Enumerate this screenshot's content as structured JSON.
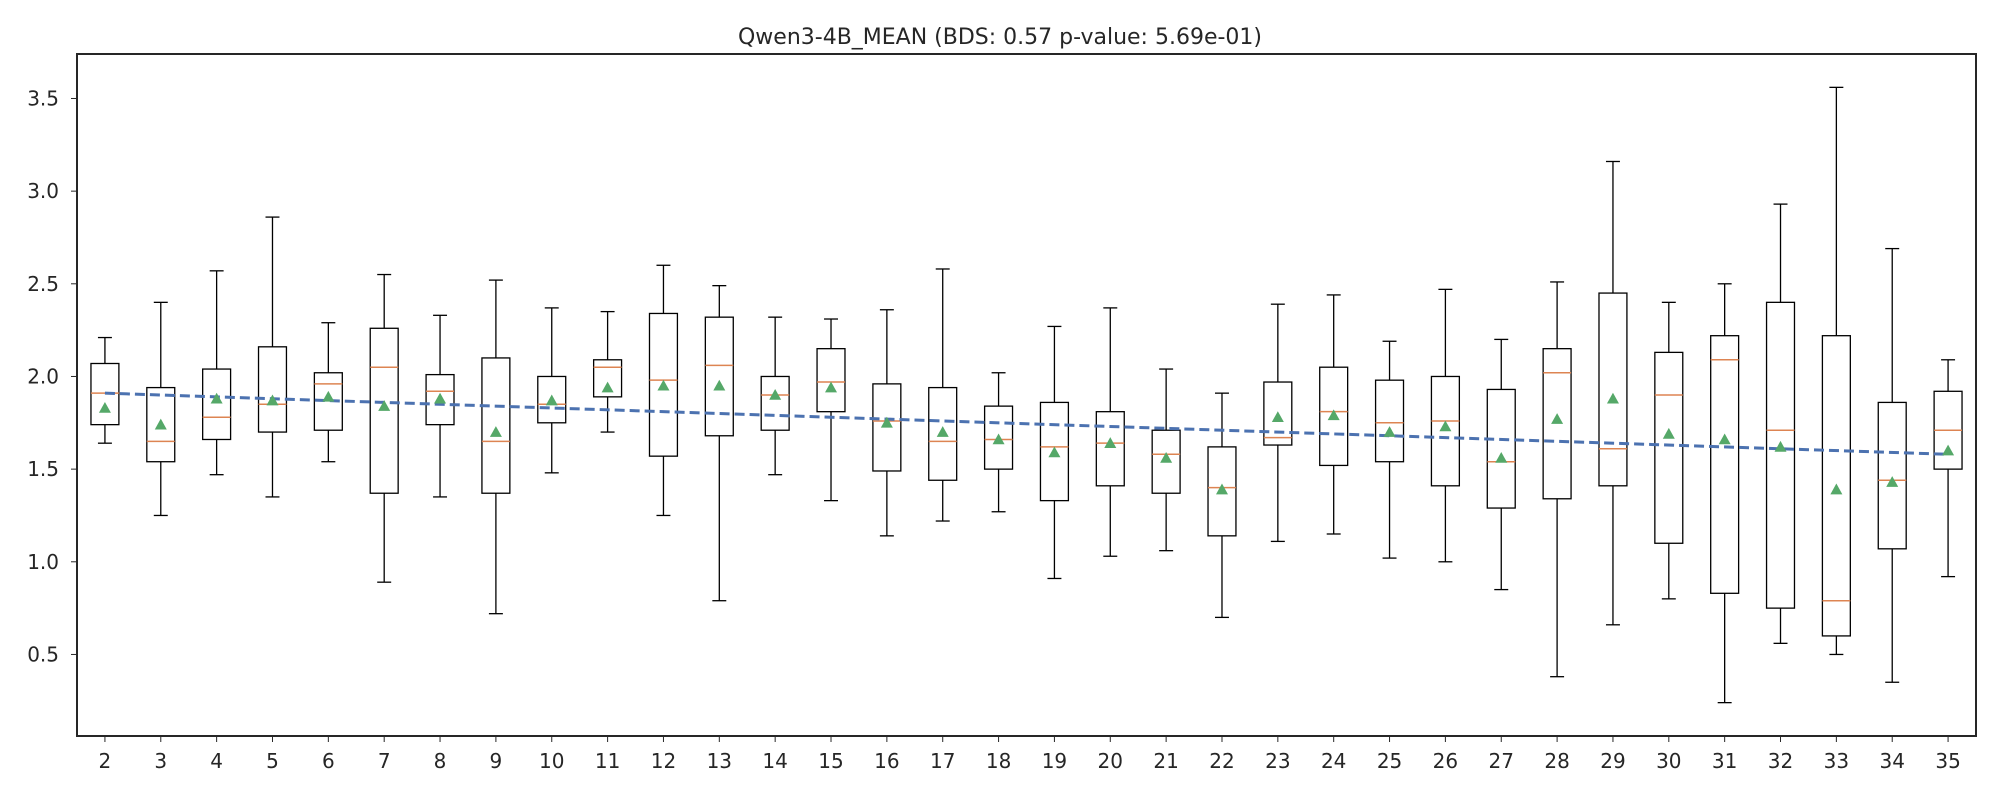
{
  "chart_data": {
    "type": "box",
    "title": "Qwen3-4B_MEAN (BDS: 0.57 p-value: 5.69e-01)",
    "xlabel": "",
    "ylabel": "",
    "ylim": [
      0.06,
      3.74
    ],
    "yticks": [
      0.5,
      1.0,
      1.5,
      2.0,
      2.5,
      3.0,
      3.5
    ],
    "ytick_labels": [
      "0.5",
      "1.0",
      "1.5",
      "2.0",
      "2.5",
      "3.0",
      "3.5"
    ],
    "grid": false,
    "colors": {
      "box": "#000000",
      "median": "#dd8452",
      "mean": "#55a868",
      "trend": "#4c72b0"
    },
    "boxes": [
      {
        "label": "2",
        "whislo": 1.64,
        "q1": 1.74,
        "med": 1.91,
        "q3": 2.07,
        "whishi": 2.21,
        "mean": 1.83
      },
      {
        "label": "3",
        "whislo": 1.25,
        "q1": 1.54,
        "med": 1.65,
        "q3": 1.94,
        "whishi": 2.4,
        "mean": 1.74
      },
      {
        "label": "4",
        "whislo": 1.47,
        "q1": 1.66,
        "med": 1.78,
        "q3": 2.04,
        "whishi": 2.57,
        "mean": 1.88
      },
      {
        "label": "5",
        "whislo": 1.35,
        "q1": 1.7,
        "med": 1.85,
        "q3": 2.16,
        "whishi": 2.86,
        "mean": 1.87
      },
      {
        "label": "6",
        "whislo": 1.54,
        "q1": 1.71,
        "med": 1.96,
        "q3": 2.02,
        "whishi": 2.29,
        "mean": 1.89
      },
      {
        "label": "7",
        "whislo": 0.89,
        "q1": 1.37,
        "med": 2.05,
        "q3": 2.26,
        "whishi": 2.55,
        "mean": 1.84
      },
      {
        "label": "8",
        "whislo": 1.35,
        "q1": 1.74,
        "med": 1.92,
        "q3": 2.01,
        "whishi": 2.33,
        "mean": 1.88
      },
      {
        "label": "9",
        "whislo": 0.72,
        "q1": 1.37,
        "med": 1.65,
        "q3": 2.1,
        "whishi": 2.52,
        "mean": 1.7
      },
      {
        "label": "10",
        "whislo": 1.48,
        "q1": 1.75,
        "med": 1.85,
        "q3": 2.0,
        "whishi": 2.37,
        "mean": 1.87
      },
      {
        "label": "11",
        "whislo": 1.7,
        "q1": 1.89,
        "med": 2.05,
        "q3": 2.09,
        "whishi": 2.35,
        "mean": 1.94
      },
      {
        "label": "12",
        "whislo": 1.25,
        "q1": 1.57,
        "med": 1.98,
        "q3": 2.34,
        "whishi": 2.6,
        "mean": 1.95
      },
      {
        "label": "13",
        "whislo": 0.79,
        "q1": 1.68,
        "med": 2.06,
        "q3": 2.32,
        "whishi": 2.49,
        "mean": 1.95
      },
      {
        "label": "14",
        "whislo": 1.47,
        "q1": 1.71,
        "med": 1.9,
        "q3": 2.0,
        "whishi": 2.32,
        "mean": 1.9
      },
      {
        "label": "15",
        "whislo": 1.33,
        "q1": 1.81,
        "med": 1.97,
        "q3": 2.15,
        "whishi": 2.31,
        "mean": 1.94
      },
      {
        "label": "16",
        "whislo": 1.14,
        "q1": 1.49,
        "med": 1.76,
        "q3": 1.96,
        "whishi": 2.36,
        "mean": 1.75
      },
      {
        "label": "17",
        "whislo": 1.22,
        "q1": 1.44,
        "med": 1.65,
        "q3": 1.94,
        "whishi": 2.58,
        "mean": 1.7
      },
      {
        "label": "18",
        "whislo": 1.27,
        "q1": 1.5,
        "med": 1.66,
        "q3": 1.84,
        "whishi": 2.02,
        "mean": 1.66
      },
      {
        "label": "19",
        "whislo": 0.91,
        "q1": 1.33,
        "med": 1.62,
        "q3": 1.86,
        "whishi": 2.27,
        "mean": 1.59
      },
      {
        "label": "20",
        "whislo": 1.03,
        "q1": 1.41,
        "med": 1.64,
        "q3": 1.81,
        "whishi": 2.37,
        "mean": 1.64
      },
      {
        "label": "21",
        "whislo": 1.06,
        "q1": 1.37,
        "med": 1.58,
        "q3": 1.71,
        "whishi": 2.04,
        "mean": 1.56
      },
      {
        "label": "22",
        "whislo": 0.7,
        "q1": 1.14,
        "med": 1.4,
        "q3": 1.62,
        "whishi": 1.91,
        "mean": 1.39
      },
      {
        "label": "23",
        "whislo": 1.11,
        "q1": 1.63,
        "med": 1.67,
        "q3": 1.97,
        "whishi": 2.39,
        "mean": 1.78
      },
      {
        "label": "24",
        "whislo": 1.15,
        "q1": 1.52,
        "med": 1.81,
        "q3": 2.05,
        "whishi": 2.44,
        "mean": 1.79
      },
      {
        "label": "25",
        "whislo": 1.02,
        "q1": 1.54,
        "med": 1.75,
        "q3": 1.98,
        "whishi": 2.19,
        "mean": 1.7
      },
      {
        "label": "26",
        "whislo": 1.0,
        "q1": 1.41,
        "med": 1.76,
        "q3": 2.0,
        "whishi": 2.47,
        "mean": 1.73
      },
      {
        "label": "27",
        "whislo": 0.85,
        "q1": 1.29,
        "med": 1.54,
        "q3": 1.93,
        "whishi": 2.2,
        "mean": 1.56
      },
      {
        "label": "28",
        "whislo": 0.38,
        "q1": 1.34,
        "med": 2.02,
        "q3": 2.15,
        "whishi": 2.51,
        "mean": 1.77
      },
      {
        "label": "29",
        "whislo": 0.66,
        "q1": 1.41,
        "med": 1.61,
        "q3": 2.45,
        "whishi": 3.16,
        "mean": 1.88
      },
      {
        "label": "30",
        "whislo": 0.8,
        "q1": 1.1,
        "med": 1.9,
        "q3": 2.13,
        "whishi": 2.4,
        "mean": 1.69
      },
      {
        "label": "31",
        "whislo": 0.24,
        "q1": 0.83,
        "med": 2.09,
        "q3": 2.22,
        "whishi": 2.5,
        "mean": 1.66
      },
      {
        "label": "32",
        "whislo": 0.56,
        "q1": 0.75,
        "med": 1.71,
        "q3": 2.4,
        "whishi": 2.93,
        "mean": 1.62
      },
      {
        "label": "33",
        "whislo": 0.5,
        "q1": 0.6,
        "med": 0.79,
        "q3": 2.22,
        "whishi": 3.56,
        "mean": 1.39
      },
      {
        "label": "34",
        "whislo": 0.35,
        "q1": 1.07,
        "med": 1.44,
        "q3": 1.86,
        "whishi": 2.69,
        "mean": 1.43
      },
      {
        "label": "35",
        "whislo": 0.92,
        "q1": 1.5,
        "med": 1.71,
        "q3": 1.92,
        "whishi": 2.09,
        "mean": 1.6
      }
    ],
    "trend_line": {
      "x": [
        "2",
        "35"
      ],
      "y": [
        1.91,
        1.58
      ]
    }
  }
}
